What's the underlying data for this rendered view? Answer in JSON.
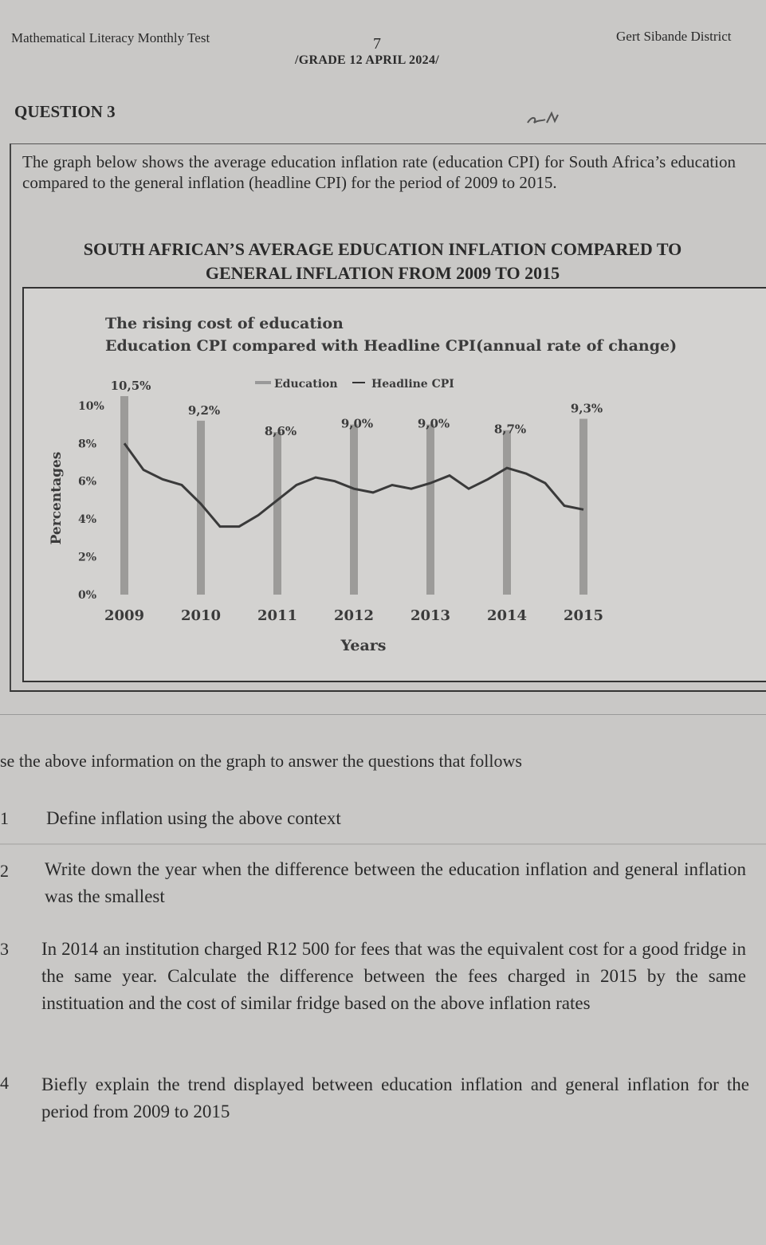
{
  "header": {
    "left": "Mathematical Literacy Monthly Test",
    "page_number": "7",
    "right": "Gert Sibande District",
    "grade_line": "/GRADE 12   APRIL 2024/"
  },
  "question_title": "QUESTION 3",
  "intro_text": "The graph below shows the average education inflation rate (education CPI) for South Africa’s education compared to the general inflation (headline CPI) for the period of 2009 to 2015.",
  "chart_heading": {
    "line1": "SOUTH AFRICAN’S AVERAGE EDUCATION INFLATION COMPARED TO",
    "line2": "GENERAL INFLATION FROM 2009 TO 2015"
  },
  "chart_data": {
    "type": "bar",
    "title": "The rising cost of education",
    "subtitle": "Education CPI compared with Headline CPI(annual rate of change)",
    "xlabel": "Years",
    "ylabel": "Percentages",
    "legend": [
      "Education",
      "Headline CPI"
    ],
    "categories": [
      "2009",
      "2010",
      "2011",
      "2012",
      "2013",
      "2014",
      "2015"
    ],
    "y_ticks": [
      "0%",
      "2%",
      "4%",
      "6%",
      "8%",
      "10%"
    ],
    "ylim": [
      0,
      10.5
    ],
    "series": [
      {
        "name": "Education",
        "type": "bar",
        "values": [
          10.5,
          9.2,
          8.6,
          9.0,
          9.0,
          8.7,
          9.3
        ],
        "labels": [
          "10,5%",
          "9,2%",
          "8,6%",
          "9,0%",
          "9,0%",
          "8,7%",
          "9,3%"
        ]
      },
      {
        "name": "Headline CPI",
        "type": "line",
        "x": [
          2009.0,
          2009.25,
          2009.5,
          2009.75,
          2010.0,
          2010.25,
          2010.5,
          2010.75,
          2011.0,
          2011.25,
          2011.5,
          2011.75,
          2012.0,
          2012.25,
          2012.5,
          2012.75,
          2013.0,
          2013.25,
          2013.5,
          2013.75,
          2014.0,
          2014.25,
          2014.5,
          2014.75,
          2015.0
        ],
        "values": [
          8.0,
          6.6,
          6.1,
          5.8,
          4.8,
          3.6,
          3.6,
          4.2,
          5.0,
          5.8,
          6.2,
          6.0,
          5.6,
          5.4,
          5.8,
          5.6,
          5.9,
          6.3,
          5.6,
          6.1,
          6.7,
          6.4,
          5.9,
          4.7,
          4.5
        ]
      }
    ]
  },
  "instruction": "se the above information on the graph to answer the questions that follows",
  "questions": [
    {
      "num": "1",
      "text": "Define inflation using the above context"
    },
    {
      "num": "2",
      "text": "Write down the year when the difference between the education inflation and general inflation was the smallest"
    },
    {
      "num": "3",
      "text": "In 2014 an institution charged R12 500 for fees that was the equivalent cost for a good fridge in the same year. Calculate the difference between the fees charged in 2015 by the same instituation and the cost of similar fridge based on the above inflation rates"
    },
    {
      "num": "4",
      "text": "Biefly explain the trend displayed between education inflation and general inflation for the period from 2009 to 2015"
    }
  ]
}
